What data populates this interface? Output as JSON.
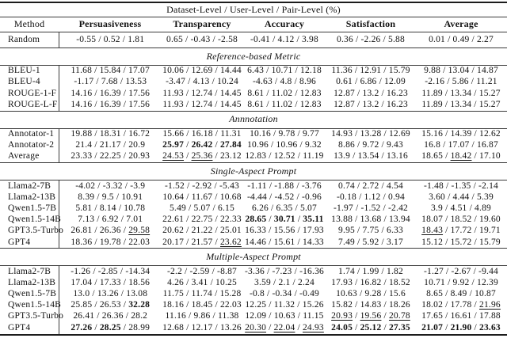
{
  "table": {
    "span_header": "Dataset-Level / User-Level / Pair-Level (%)",
    "columns": [
      "Method",
      "Persuasiveness",
      "Transparency",
      "Accuracy",
      "Satisfaction",
      "Average"
    ],
    "sections": [
      {
        "title": null,
        "rows": [
          {
            "method": "Random",
            "cells": [
              "-0.55 / 0.52 / 1.81",
              "0.65 / -0.43 / -2.58",
              "-0.41 / 4.12 / 3.98",
              "0.36 / -2.26 / 5.88",
              "0.01 / 0.49 / 2.27"
            ]
          }
        ]
      },
      {
        "title": "Reference-based Metric",
        "rows": [
          {
            "method": "BLEU-1",
            "cells": [
              "11.68 / 15.84 / 17.07",
              "10.06 / 12.69 / 14.44",
              "6.43 / 10.71 / 12.18",
              "11.36 / 12.91 / 15.79",
              "9.88 / 13.04 / 14.87"
            ]
          },
          {
            "method": "BLEU-4",
            "cells": [
              "-1.17 / 7.68 / 13.53",
              "-3.47 / 4.13 / 10.24",
              "-4.63 / 4.8 / 8.96",
              "0.61 / 6.86 / 12.09",
              "-2.16 / 5.86 / 11.21"
            ]
          },
          {
            "method": "ROUGE-1-F",
            "cells": [
              "14.16 / 16.39 / 17.56",
              "11.93 / 12.74 / 14.45",
              "8.61 / 11.02 / 12.83",
              "12.87 / 13.2 / 16.23",
              "11.89 / 13.34 / 15.27"
            ]
          },
          {
            "method": "ROUGE-L-F",
            "cells": [
              "14.16 / 16.39 / 17.56",
              "11.93 / 12.74 / 14.45",
              "8.61 / 11.02 / 12.83",
              "12.87 / 13.2 / 16.23",
              "11.89 / 13.34 / 15.27"
            ]
          }
        ]
      },
      {
        "title": "Annnotation",
        "rows": [
          {
            "method": "Annotator-1",
            "cells": [
              "19.88 / 18.31 / 16.72",
              "15.66 / 16.18 / 11.31",
              "10.16 / 9.78 / 9.77",
              "14.93 / 13.28 / 12.69",
              "15.16 / 14.39 / 12.62"
            ]
          },
          {
            "method": "Annotator-2",
            "cells": [
              "21.4 / 21.17 / 20.9",
              "**25.97** / **26.42** / **27.84**",
              "10.96 / 10.96 / 9.32",
              "8.86 / 9.72 / 9.43",
              "16.8 / 17.07 / 16.87"
            ]
          },
          {
            "method": "Average",
            "cells": [
              "23.33 / 22.25 / 20.93",
              "__24.53__ / __25.36__ / 23.12",
              "12.83 / 12.52 / 11.19",
              "13.9 / 13.54 / 13.16",
              "18.65 / __18.42__ / 17.10"
            ]
          }
        ]
      },
      {
        "title": "Single-Aspect Prompt",
        "rows": [
          {
            "method": "Llama2-7B",
            "cells": [
              "-4.02 / -3.32 / -3.9",
              "-1.52 / -2.92 / -5.43",
              "-1.11 / -1.88 / -3.76",
              "0.74 / 2.72 / 4.54",
              "-1.48 / -1.35 / -2.14"
            ]
          },
          {
            "method": "Llama2-13B",
            "cells": [
              "8.39 / 9.5 / 10.91",
              "10.64 / 11.67 / 10.68",
              "-4.44 / -4.52 / -0.96",
              "-0.18 / 1.12 / 0.94",
              "3.60 / 4.44 / 5.39"
            ]
          },
          {
            "method": "Qwen1.5-7B",
            "cells": [
              "5.81 / 8.14 / 10.78",
              "5.49 / 5.07 / 6.15",
              "6.26 / 6.35 / 5.07",
              "-1.97 / -1.52 / -2.42",
              "3.9 / 4.51 / 4.89"
            ]
          },
          {
            "method": "Qwen1.5-14B",
            "cells": [
              "7.13 / 6.92 / 7.01",
              "22.61 / 22.75 / 22.33",
              "**28.65** / **30.71** / **35.11**",
              "13.88 / 13.68 / 13.94",
              "18.07 / 18.52 / 19.60"
            ]
          },
          {
            "method": "GPT3.5-Turbo",
            "cells": [
              "26.81 / 26.36 / __29.58__",
              "20.62 / 21.22 / 25.01",
              "16.33 / 15.56 / 17.93",
              "9.95 / 7.75 / 6.33",
              "__18.43__ / 17.72 / 19.71"
            ]
          },
          {
            "method": "GPT4",
            "cells": [
              "18.36 / 19.78 / 22.03",
              "20.17 / 21.57 / __23.62__",
              "14.46 / 15.61 / 14.33",
              "7.49 / 5.92 / 3.17",
              "15.12 / 15.72 / 15.79"
            ]
          }
        ]
      },
      {
        "title": "Multiple-Aspect Prompt",
        "rows": [
          {
            "method": "Llama2-7B",
            "cells": [
              "-1.26 / -2.85 / -14.34",
              "-2.2 / -2.59 / -8.87",
              "-3.36 / -7.23 / -16.36",
              "1.74 / 1.99 / 1.82",
              "-1.27 / -2.67 / -9.44"
            ]
          },
          {
            "method": "Llama2-13B",
            "cells": [
              "17.04 / 17.33 / 18.56",
              "4.26 / 3.41 / 10.25",
              "3.59 / 2.1 / 2.24",
              "17.93 / 16.82 / 18.52",
              "10.71 / 9.92 / 12.39"
            ]
          },
          {
            "method": "Qwen1.5-7B",
            "cells": [
              "13.0 / 13.26 / 13.08",
              "11.75 / 11.74 / 15.28",
              "-0.8 / -0.34 / -0.49",
              "10.63 / 9.28 / 15.6",
              "8.65 / 8.49 / 10.87"
            ]
          },
          {
            "method": "Qwen1.5-14B",
            "cells": [
              "25.85 / 26.53 / **32.28**",
              "18.16 / 18.45 / 22.03",
              "12.25 / 11.32 / 15.26",
              "15.82 / 14.83 / 18.26",
              "18.02 / 17.78 / __21.96__"
            ]
          },
          {
            "method": "GPT3.5-Turbo",
            "cells": [
              "26.41 / 26.36 / 28.2",
              "11.16 / 9.86 / 11.38",
              "12.09 / 10.63 / 11.15",
              "__20.93__ / __19.56__ / __20.78__",
              "17.65 / 16.61 / 17.88"
            ]
          },
          {
            "method": "GPT4",
            "cells": [
              "**27.26** / **28.25** / 28.99",
              "12.68 / 12.17 / 13.26",
              "__20.30__ / __22.04__ / __24.93__",
              "**24.05** / **25.12** / **27.35**",
              "**21.07** / **21.90** / **23.63**"
            ]
          }
        ]
      }
    ]
  }
}
